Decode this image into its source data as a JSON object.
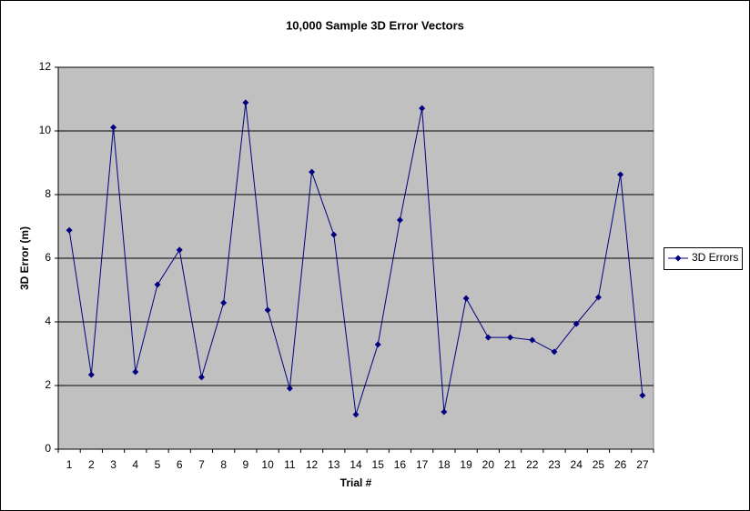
{
  "chart_data": {
    "type": "line",
    "title": "10,000 Sample 3D Error Vectors",
    "x_label": "Trial #",
    "y_label": "3D Error (m)",
    "categories": [
      "1",
      "2",
      "3",
      "4",
      "5",
      "6",
      "7",
      "8",
      "9",
      "10",
      "11",
      "12",
      "13",
      "14",
      "15",
      "16",
      "17",
      "18",
      "19",
      "20",
      "21",
      "22",
      "23",
      "24",
      "25",
      "26",
      "27"
    ],
    "series": [
      {
        "name": "3D Errors",
        "color": "#000080",
        "values": [
          6.88,
          2.34,
          10.11,
          2.43,
          5.17,
          6.26,
          2.26,
          4.6,
          10.89,
          4.37,
          1.91,
          8.71,
          6.74,
          1.09,
          3.29,
          7.2,
          10.71,
          1.17,
          4.74,
          3.51,
          3.51,
          3.43,
          3.06,
          3.94,
          4.77,
          8.63,
          1.69
        ]
      }
    ],
    "ylim": [
      0,
      12
    ],
    "yticks": [
      0,
      2,
      4,
      6,
      8,
      10,
      12
    ],
    "grid": true,
    "legend": "right",
    "plot_background": "#c0c0c0"
  }
}
